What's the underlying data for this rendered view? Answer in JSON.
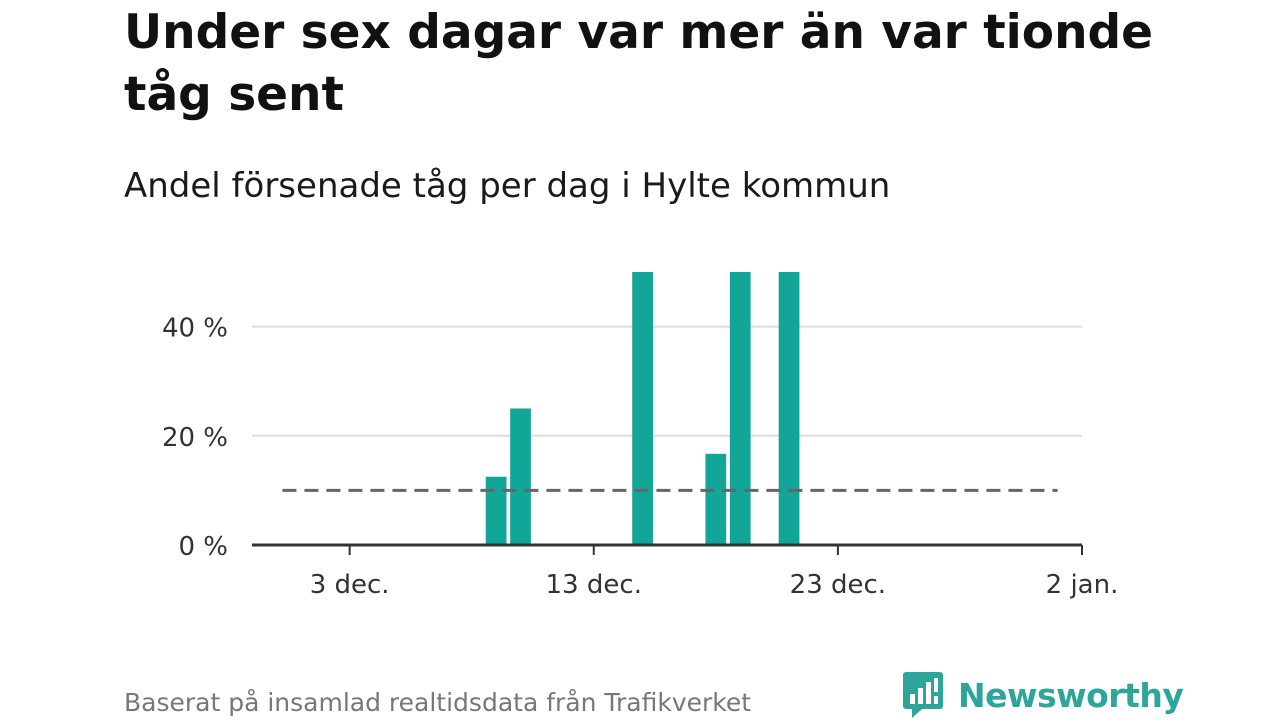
{
  "title": "Under sex dagar var mer än var tionde tåg sent",
  "subtitle": "Andel försenade tåg per dag i Hylte kommun",
  "source": "Baserat på insamlad realtidsdata från Trafikverket",
  "brand": {
    "name": "Newsworthy",
    "color": "#2ea59a"
  },
  "chart_data": {
    "type": "bar",
    "x_axis": {
      "type": "date",
      "ticks": [
        {
          "date": "2023-12-03",
          "label": "3 dec."
        },
        {
          "date": "2023-12-13",
          "label": "13 dec."
        },
        {
          "date": "2023-12-23",
          "label": "23 dec."
        },
        {
          "date": "2024-01-02",
          "label": "2 jan."
        }
      ],
      "range": [
        "2023-11-29",
        "2024-01-02"
      ]
    },
    "y_axis": {
      "ticks": [
        {
          "value": 0,
          "label": "0 %"
        },
        {
          "value": 20,
          "label": "20 %"
        },
        {
          "value": 40,
          "label": "40 %"
        }
      ],
      "range": [
        0,
        50
      ]
    },
    "bars": [
      {
        "date": "2023-12-09",
        "value": 12.5
      },
      {
        "date": "2023-12-10",
        "value": 25
      },
      {
        "date": "2023-12-15",
        "value": 50
      },
      {
        "date": "2023-12-18",
        "value": 16.7
      },
      {
        "date": "2023-12-19",
        "value": 50
      },
      {
        "date": "2023-12-21",
        "value": 50
      }
    ],
    "reference_line": {
      "value": 10,
      "style": "dashed",
      "from": "2023-11-30",
      "to": "2024-01-01"
    },
    "grid": true,
    "colors": {
      "bar": "#12a699",
      "grid": "#dddddd",
      "axis": "#333333",
      "reference": "#666666"
    }
  }
}
